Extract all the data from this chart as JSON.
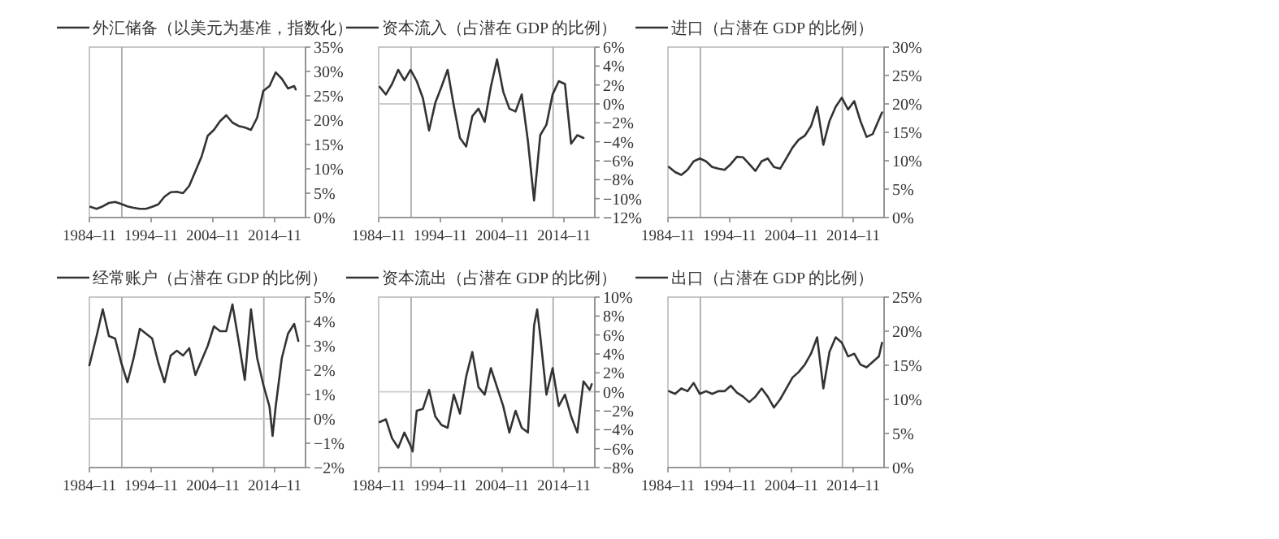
{
  "chart_data": [
    {
      "type": "line",
      "legend": "top left",
      "xlim": [
        "1984-11",
        "2019-11"
      ],
      "ylim": [
        0,
        35
      ],
      "xticks": [
        {
          "value": "1984-11",
          "label": "1984–11"
        },
        {
          "value": "1994-11",
          "label": "1994–11"
        },
        {
          "value": "2004-11",
          "label": "2004–11"
        },
        {
          "value": "2014-11",
          "label": "2014–11"
        }
      ],
      "yticks": [
        {
          "value": 0,
          "label": "0%"
        },
        {
          "value": 5,
          "label": "5%"
        },
        {
          "value": 10,
          "label": "10%"
        },
        {
          "value": 15,
          "label": "15%"
        },
        {
          "value": 20,
          "label": "20%"
        },
        {
          "value": 25,
          "label": "25%"
        },
        {
          "value": 30,
          "label": "30%"
        },
        {
          "value": 35,
          "label": "35%"
        }
      ],
      "ref_lines": [
        {
          "axis": "x",
          "value": "1990-02",
          "color": "#aaaaaa"
        },
        {
          "axis": "x",
          "value": "2013-02",
          "color": "#aaaaaa"
        }
      ],
      "x": [
        "1985-01",
        "1986-01",
        "1987-01",
        "1988-01",
        "1989-01",
        "1990-01",
        "1991-01",
        "1992-01",
        "1993-01",
        "1994-01",
        "1995-01",
        "1996-01",
        "1997-01",
        "1998-01",
        "1999-01",
        "2000-01",
        "2001-01",
        "2002-01",
        "2003-01",
        "2004-01",
        "2005-01",
        "2006-01",
        "2007-01",
        "2008-01",
        "2009-01",
        "2010-01",
        "2011-01",
        "2012-01",
        "2013-01",
        "2014-01",
        "2015-01",
        "2016-01",
        "2017-01",
        "2018-01",
        "2018-04"
      ],
      "series": [
        {
          "name": "外汇储备（以美元为基准，指数化）",
          "color": "#333333",
          "values": [
            2.2,
            1.8,
            2.3,
            3.0,
            3.2,
            2.8,
            2.3,
            2.0,
            1.8,
            1.8,
            2.2,
            2.7,
            4.3,
            5.2,
            5.3,
            5.0,
            6.5,
            9.5,
            12.5,
            16.8,
            18.0,
            19.8,
            21.0,
            19.5,
            18.8,
            18.5,
            18.0,
            20.5,
            26.0,
            27.0,
            29.8,
            28.5,
            26.5,
            27.0,
            26.3
          ]
        }
      ]
    },
    {
      "type": "line",
      "legend": "top left",
      "xlim": [
        "1984-11",
        "2019-11"
      ],
      "ylim": [
        -12,
        6
      ],
      "xticks": [
        {
          "value": "1984-11",
          "label": "1984–11"
        },
        {
          "value": "1994-11",
          "label": "1994–11"
        },
        {
          "value": "2004-11",
          "label": "2004–11"
        },
        {
          "value": "2014-11",
          "label": "2014–11"
        }
      ],
      "yticks": [
        {
          "value": -12,
          "label": "−12%"
        },
        {
          "value": -10,
          "label": "−10%"
        },
        {
          "value": -8,
          "label": "−8%"
        },
        {
          "value": -6,
          "label": "−6%"
        },
        {
          "value": -4,
          "label": "−4%"
        },
        {
          "value": -2,
          "label": "−2%"
        },
        {
          "value": 0,
          "label": "0%"
        },
        {
          "value": 2,
          "label": "2%"
        },
        {
          "value": 4,
          "label": "4%"
        },
        {
          "value": 6,
          "label": "6%"
        }
      ],
      "ref_lines": [
        {
          "axis": "x",
          "value": "1990-02",
          "color": "#aaaaaa"
        },
        {
          "axis": "x",
          "value": "2013-02",
          "color": "#aaaaaa"
        },
        {
          "axis": "y",
          "value": 0,
          "color": "#cccccc"
        }
      ],
      "x": [
        "1985-01",
        "1986-01",
        "1987-01",
        "1988-01",
        "1989-01",
        "1990-01",
        "1991-01",
        "1992-01",
        "1993-01",
        "1994-01",
        "1995-01",
        "1996-01",
        "1997-01",
        "1998-01",
        "1999-01",
        "2000-01",
        "2001-01",
        "2002-01",
        "2003-01",
        "2004-01",
        "2005-01",
        "2006-01",
        "2007-01",
        "2008-01",
        "2009-01",
        "2010-01",
        "2011-01",
        "2012-01",
        "2013-01",
        "2014-01",
        "2015-01",
        "2016-01",
        "2017-01",
        "2018-01"
      ],
      "series": [
        {
          "name": "资本流入（占潜在 GDP 的比例）",
          "color": "#333333",
          "values": [
            1.8,
            1.0,
            2.1,
            3.6,
            2.5,
            3.6,
            2.4,
            0.6,
            -2.8,
            0.1,
            1.8,
            3.6,
            -0.2,
            -3.6,
            -4.5,
            -1.3,
            -0.5,
            -1.9,
            1.8,
            4.7,
            1.3,
            -0.5,
            -0.8,
            1.0,
            -3.9,
            -10.2,
            -3.3,
            -2.2,
            1.0,
            2.4,
            2.1,
            -4.2,
            -3.3,
            -3.6
          ]
        }
      ]
    },
    {
      "type": "line",
      "legend": "top left",
      "xlim": [
        "1984-11",
        "2019-11"
      ],
      "ylim": [
        0,
        30
      ],
      "xticks": [
        {
          "value": "1984-11",
          "label": "1984–11"
        },
        {
          "value": "1994-11",
          "label": "1994–11"
        },
        {
          "value": "2004-11",
          "label": "2004–11"
        },
        {
          "value": "2014-11",
          "label": "2014–11"
        }
      ],
      "yticks": [
        {
          "value": 0,
          "label": "0%"
        },
        {
          "value": 5,
          "label": "5%"
        },
        {
          "value": 10,
          "label": "10%"
        },
        {
          "value": 15,
          "label": "15%"
        },
        {
          "value": 20,
          "label": "20%"
        },
        {
          "value": 25,
          "label": "25%"
        },
        {
          "value": 30,
          "label": "30%"
        }
      ],
      "ref_lines": [
        {
          "axis": "x",
          "value": "1990-02",
          "color": "#aaaaaa"
        },
        {
          "axis": "x",
          "value": "2013-02",
          "color": "#aaaaaa"
        }
      ],
      "x": [
        "1985-01",
        "1986-01",
        "1987-01",
        "1988-01",
        "1989-01",
        "1990-01",
        "1991-01",
        "1992-01",
        "1993-01",
        "1994-01",
        "1995-01",
        "1996-01",
        "1997-01",
        "1998-01",
        "1999-01",
        "2000-01",
        "2001-01",
        "2002-01",
        "2003-01",
        "2004-01",
        "2005-01",
        "2006-01",
        "2007-01",
        "2008-01",
        "2009-01",
        "2010-01",
        "2011-01",
        "2012-01",
        "2013-01",
        "2014-01",
        "2015-01",
        "2016-01",
        "2017-01",
        "2018-01",
        "2019-07"
      ],
      "series": [
        {
          "name": "进口（占潜在 GDP 的比例）",
          "color": "#333333",
          "values": [
            8.9,
            8.0,
            7.5,
            8.4,
            9.9,
            10.4,
            9.9,
            8.9,
            8.6,
            8.4,
            9.4,
            10.7,
            10.6,
            9.4,
            8.2,
            9.9,
            10.4,
            8.9,
            8.6,
            10.4,
            12.3,
            13.7,
            14.4,
            16.1,
            19.5,
            12.8,
            17.0,
            19.5,
            21.1,
            19.0,
            20.5,
            17.0,
            14.2,
            14.7,
            18.5
          ]
        }
      ]
    },
    {
      "type": "line",
      "legend": "top left",
      "xlim": [
        "1984-11",
        "2019-11"
      ],
      "ylim": [
        -2,
        5
      ],
      "xticks": [
        {
          "value": "1984-11",
          "label": "1984–11"
        },
        {
          "value": "1994-11",
          "label": "1994–11"
        },
        {
          "value": "2004-11",
          "label": "2004–11"
        },
        {
          "value": "2014-11",
          "label": "2014–11"
        }
      ],
      "yticks": [
        {
          "value": -2,
          "label": "−2%"
        },
        {
          "value": -1,
          "label": "−1%"
        },
        {
          "value": 0,
          "label": "0%"
        },
        {
          "value": 1,
          "label": "1%"
        },
        {
          "value": 2,
          "label": "2%"
        },
        {
          "value": 3,
          "label": "3%"
        },
        {
          "value": 4,
          "label": "4%"
        },
        {
          "value": 5,
          "label": "5%"
        }
      ],
      "ref_lines": [
        {
          "axis": "x",
          "value": "1990-02",
          "color": "#aaaaaa"
        },
        {
          "axis": "x",
          "value": "2013-02",
          "color": "#aaaaaa"
        },
        {
          "axis": "y",
          "value": 0,
          "color": "#cccccc"
        }
      ],
      "x": [
        "1984-11",
        "1986-01",
        "1987-01",
        "1988-01",
        "1989-01",
        "1990-01",
        "1991-01",
        "1992-01",
        "1993-01",
        "1994-01",
        "1995-01",
        "1996-01",
        "1997-01",
        "1998-01",
        "1999-01",
        "2000-01",
        "2001-01",
        "2002-01",
        "2003-01",
        "2004-01",
        "2005-01",
        "2006-01",
        "2007-01",
        "2008-01",
        "2009-01",
        "2010-01",
        "2011-01",
        "2012-01",
        "2013-01",
        "2014-01",
        "2014-07",
        "2015-01",
        "2016-01",
        "2017-01",
        "2018-01",
        "2018-09"
      ],
      "series": [
        {
          "name": "经常账户（占潜在 GDP 的比例）",
          "color": "#333333",
          "values": [
            2.2,
            3.4,
            4.5,
            3.4,
            3.3,
            2.3,
            1.5,
            2.5,
            3.7,
            3.5,
            3.3,
            2.3,
            1.5,
            2.6,
            2.8,
            2.6,
            2.9,
            1.8,
            2.4,
            3.0,
            3.8,
            3.6,
            3.6,
            4.7,
            3.2,
            1.6,
            4.5,
            2.5,
            1.4,
            0.5,
            -0.7,
            0.5,
            2.5,
            3.5,
            3.9,
            3.2
          ]
        }
      ]
    },
    {
      "type": "line",
      "legend": "top left",
      "xlim": [
        "1984-11",
        "2019-11"
      ],
      "ylim": [
        -8,
        10
      ],
      "xticks": [
        {
          "value": "1984-11",
          "label": "1984–11"
        },
        {
          "value": "1994-11",
          "label": "1994–11"
        },
        {
          "value": "2004-11",
          "label": "2004–11"
        },
        {
          "value": "2014-11",
          "label": "2014–11"
        }
      ],
      "yticks": [
        {
          "value": -8,
          "label": "−8%"
        },
        {
          "value": -6,
          "label": "−6%"
        },
        {
          "value": -4,
          "label": "−4%"
        },
        {
          "value": -2,
          "label": "−2%"
        },
        {
          "value": 0,
          "label": "0%"
        },
        {
          "value": 2,
          "label": "2%"
        },
        {
          "value": 4,
          "label": "4%"
        },
        {
          "value": 6,
          "label": "6%"
        },
        {
          "value": 8,
          "label": "8%"
        },
        {
          "value": 10,
          "label": "10%"
        }
      ],
      "ref_lines": [
        {
          "axis": "x",
          "value": "1990-02",
          "color": "#aaaaaa"
        },
        {
          "axis": "x",
          "value": "2013-02",
          "color": "#aaaaaa"
        },
        {
          "axis": "y",
          "value": 0,
          "color": "#cccccc"
        }
      ],
      "x": [
        "1985-01",
        "1986-01",
        "1987-01",
        "1988-01",
        "1989-01",
        "1990-01",
        "1990-05",
        "1991-01",
        "1992-01",
        "1993-01",
        "1994-01",
        "1995-01",
        "1996-01",
        "1997-01",
        "1998-01",
        "1999-01",
        "2000-01",
        "2001-01",
        "2002-01",
        "2003-01",
        "2004-01",
        "2005-01",
        "2006-01",
        "2007-01",
        "2008-01",
        "2009-01",
        "2010-01",
        "2010-07",
        "2011-01",
        "2012-01",
        "2013-01",
        "2014-01",
        "2015-01",
        "2016-01",
        "2017-01",
        "2018-01",
        "2019-01",
        "2019-05"
      ],
      "series": [
        {
          "name": "资本流出（占潜在 GDP 的比例）",
          "color": "#333333",
          "values": [
            -3.2,
            -2.9,
            -4.9,
            -5.9,
            -4.3,
            -5.7,
            -6.3,
            -2.0,
            -1.8,
            0.2,
            -2.6,
            -3.5,
            -3.8,
            -0.3,
            -2.3,
            1.6,
            4.2,
            0.5,
            -0.3,
            2.5,
            0.5,
            -1.5,
            -4.3,
            -2.0,
            -3.8,
            -4.3,
            7.0,
            8.7,
            5.9,
            -0.3,
            2.5,
            -1.5,
            -0.3,
            -2.6,
            -4.3,
            1.1,
            0.2,
            0.8
          ]
        }
      ]
    },
    {
      "type": "line",
      "legend": "top left",
      "xlim": [
        "1984-11",
        "2019-11"
      ],
      "ylim": [
        0,
        25
      ],
      "xticks": [
        {
          "value": "1984-11",
          "label": "1984–11"
        },
        {
          "value": "1994-11",
          "label": "1994–11"
        },
        {
          "value": "2004-11",
          "label": "2004–11"
        },
        {
          "value": "2014-11",
          "label": "2014–11"
        }
      ],
      "yticks": [
        {
          "value": 0,
          "label": "0%"
        },
        {
          "value": 5,
          "label": "5%"
        },
        {
          "value": 10,
          "label": "10%"
        },
        {
          "value": 15,
          "label": "15%"
        },
        {
          "value": 20,
          "label": "20%"
        },
        {
          "value": 25,
          "label": "25%"
        }
      ],
      "ref_lines": [
        {
          "axis": "x",
          "value": "1990-02",
          "color": "#aaaaaa"
        },
        {
          "axis": "x",
          "value": "2013-02",
          "color": "#aaaaaa"
        }
      ],
      "x": [
        "1985-01",
        "1986-01",
        "1987-01",
        "1988-01",
        "1989-01",
        "1990-01",
        "1991-01",
        "1992-01",
        "1993-01",
        "1994-01",
        "1995-01",
        "1996-01",
        "1997-01",
        "1998-01",
        "1999-01",
        "2000-01",
        "2001-01",
        "2002-01",
        "2003-01",
        "2004-01",
        "2005-01",
        "2006-01",
        "2007-01",
        "2008-01",
        "2009-01",
        "2010-01",
        "2011-01",
        "2012-01",
        "2013-01",
        "2014-01",
        "2015-01",
        "2016-01",
        "2017-01",
        "2018-01",
        "2019-01",
        "2019-07"
      ],
      "series": [
        {
          "name": "出口（占潜在 GDP 的比例）",
          "color": "#333333",
          "values": [
            11.2,
            10.8,
            11.6,
            11.2,
            12.4,
            10.8,
            11.2,
            10.8,
            11.2,
            11.2,
            12.0,
            11.0,
            10.4,
            9.6,
            10.4,
            11.6,
            10.4,
            8.8,
            10.0,
            11.6,
            13.2,
            14.0,
            15.1,
            16.7,
            19.1,
            11.6,
            17.0,
            19.1,
            18.3,
            16.3,
            16.7,
            15.1,
            14.7,
            15.5,
            16.3,
            18.3
          ]
        }
      ]
    }
  ]
}
